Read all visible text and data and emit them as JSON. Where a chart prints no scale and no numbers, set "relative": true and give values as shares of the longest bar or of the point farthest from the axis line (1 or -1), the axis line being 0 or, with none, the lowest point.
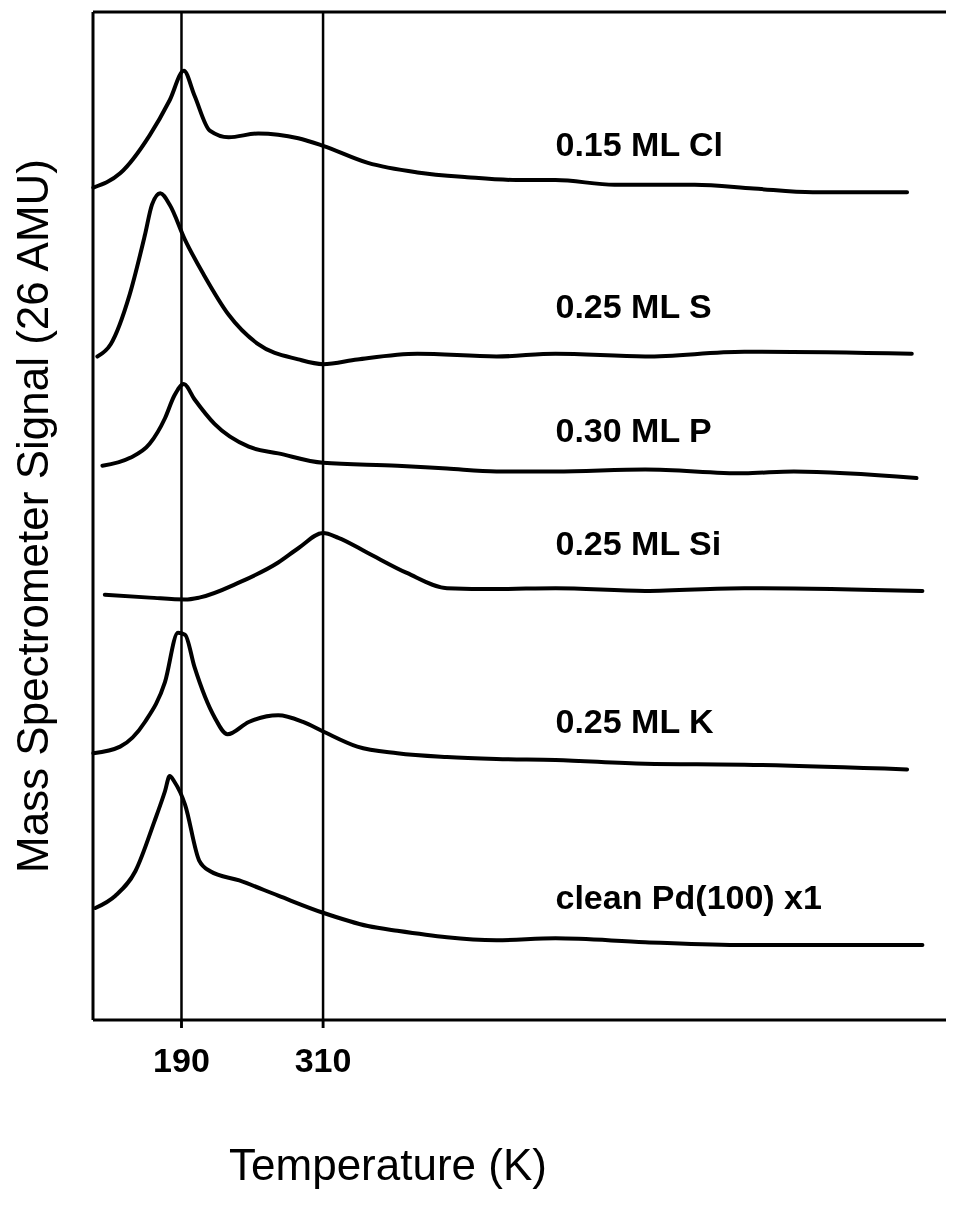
{
  "chart_data": {
    "type": "line",
    "relative": true,
    "xlabel": "Temperature (K)",
    "ylabel": "Mass Spectrometer Signal (26 AMU)",
    "xlim": [
      115,
      838
    ],
    "xticks": [
      190,
      310
    ],
    "marker": "none",
    "line_style": "solid",
    "ref_lines": [
      {
        "axis": "x",
        "value": 190
      },
      {
        "axis": "x",
        "value": 310
      }
    ],
    "series": [
      {
        "name": "0.15 ML Cl",
        "color": "#000000",
        "x": [
          115.3,
          138,
          163,
          180,
          192,
          201,
          214,
          230,
          255,
          289,
          310,
          348,
          390,
          432,
          474,
          507,
          557,
          625,
          675,
          725,
          805
        ],
        "values": [
          0.877,
          0.892,
          0.932,
          0.969,
          1.0,
          0.974,
          0.937,
          0.93,
          0.934,
          0.929,
          0.921,
          0.903,
          0.893,
          0.888,
          0.885,
          0.885,
          0.88,
          0.88,
          0.876,
          0.872,
          0.872
        ]
      },
      {
        "name": "0.25 ML S",
        "color": "#000000",
        "x": [
          118.7,
          130,
          146,
          159,
          165,
          172,
          180,
          193,
          209,
          230,
          255,
          289,
          310,
          339,
          390,
          457,
          507,
          583,
          667,
          809
        ],
        "values": [
          0.699,
          0.712,
          0.764,
          0.827,
          0.859,
          0.871,
          0.859,
          0.822,
          0.785,
          0.743,
          0.712,
          0.696,
          0.691,
          0.696,
          0.702,
          0.699,
          0.702,
          0.699,
          0.704,
          0.702
        ]
      },
      {
        "name": "0.30 ML P",
        "color": "#000000",
        "x": [
          123,
          146,
          163,
          176,
          184,
          192,
          201,
          218,
          247,
          272,
          310,
          373,
          415,
          457,
          507,
          583,
          667,
          709,
          813
        ],
        "values": [
          0.584,
          0.592,
          0.607,
          0.634,
          0.658,
          0.67,
          0.654,
          0.628,
          0.604,
          0.597,
          0.587,
          0.584,
          0.581,
          0.578,
          0.578,
          0.58,
          0.576,
          0.578,
          0.571
        ]
      },
      {
        "name": "0.25 ML Si",
        "color": "#000000",
        "x": [
          125,
          163,
          193,
          205,
          239,
          272,
          289,
          310,
          323,
          348,
          381,
          415,
          457,
          507,
          583,
          667,
          818
        ],
        "values": [
          0.448,
          0.445,
          0.443,
          0.445,
          0.461,
          0.482,
          0.497,
          0.513,
          0.508,
          0.492,
          0.471,
          0.455,
          0.454,
          0.455,
          0.452,
          0.455,
          0.452
        ]
      },
      {
        "name": "0.25 ML K",
        "color": "#000000",
        "x": [
          115.3,
          138,
          159,
          176,
          187,
          193,
          201,
          218,
          229,
          247,
          272,
          293,
          310,
          339,
          373,
          415,
          457,
          507,
          583,
          667,
          805
        ],
        "values": [
          0.281,
          0.288,
          0.314,
          0.356,
          0.408,
          0.406,
          0.372,
          0.319,
          0.301,
          0.314,
          0.321,
          0.314,
          0.304,
          0.288,
          0.281,
          0.277,
          0.275,
          0.274,
          0.27,
          0.269,
          0.264
        ]
      },
      {
        "name": "clean Pd(100) x1",
        "color": "#000000",
        "x": [
          117,
          134,
          151,
          167,
          176,
          180,
          184,
          193,
          205,
          214,
          239,
          272,
          310,
          348,
          373,
          457,
          507,
          583,
          667,
          818
        ],
        "values": [
          0.118,
          0.131,
          0.157,
          0.209,
          0.241,
          0.257,
          0.251,
          0.227,
          0.168,
          0.157,
          0.147,
          0.131,
          0.113,
          0.099,
          0.094,
          0.084,
          0.086,
          0.082,
          0.079,
          0.079
        ]
      }
    ]
  }
}
